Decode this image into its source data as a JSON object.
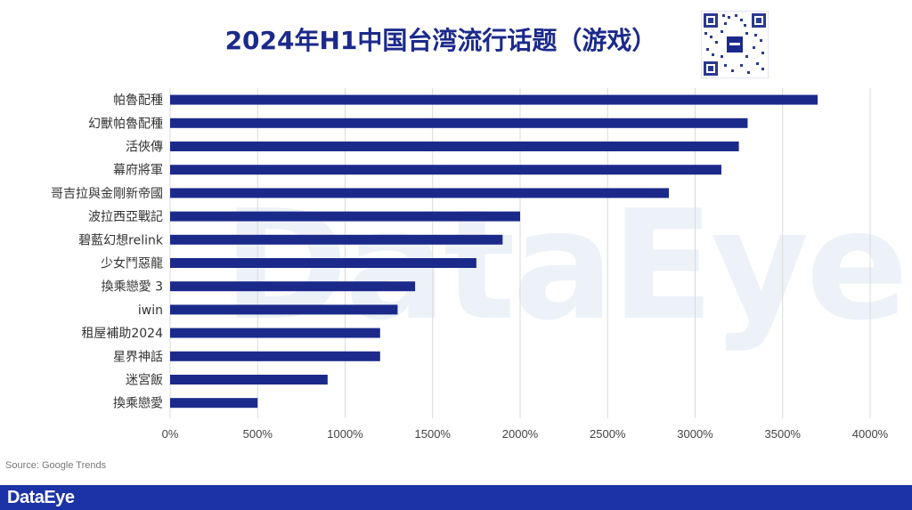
{
  "watermark": "DataEye",
  "source": "Source: Google Trends",
  "footer": {
    "logo": "DataEye"
  },
  "colors": {
    "bar": "#1b2a8a",
    "title": "#1b2a8a",
    "footer": "#1b33a6",
    "grid": "#d9d9d9"
  },
  "chart_data": {
    "type": "bar",
    "orientation": "horizontal",
    "title": "2024年H1中国台湾流行话题（游戏）",
    "xlabel": "",
    "ylabel": "",
    "xlim": [
      0,
      4000
    ],
    "x_tick_values": [
      0,
      500,
      1000,
      1500,
      2000,
      2500,
      3000,
      3500,
      4000
    ],
    "x_ticks": [
      "0%",
      "500%",
      "1000%",
      "1500%",
      "2000%",
      "2500%",
      "3000%",
      "3500%",
      "4000%"
    ],
    "grid": "vertical",
    "legend": "none",
    "categories": [
      "帕魯配種",
      "幻獸帕魯配種",
      "活俠傳",
      "幕府將軍",
      "哥吉拉與金剛新帝國",
      "波拉西亞戰記",
      "碧藍幻想relink",
      "少女鬥惡龍",
      "換乘戀愛 3",
      "iwin",
      "租屋補助2024",
      "星界神話",
      "迷宮飯",
      "換乘戀愛"
    ],
    "values": [
      3700,
      3300,
      3250,
      3150,
      2850,
      2000,
      1900,
      1750,
      1400,
      1300,
      1200,
      1200,
      900,
      500
    ]
  }
}
